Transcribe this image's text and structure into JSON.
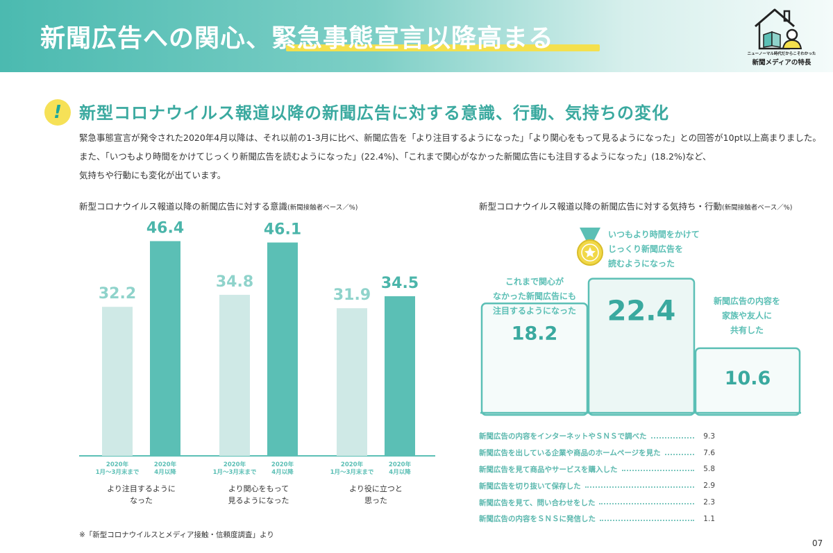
{
  "header": {
    "title": "新聞広告への関心、緊急事態宣言以降高まる",
    "logo_line1": "ニューノーマル時代だからこそわかった",
    "logo_line2": "新聞メディアの特長"
  },
  "section": {
    "alert_icon": "!",
    "heading": "新型コロナウイルス報道以降の新聞広告に対する意識、行動、気持ちの変化",
    "body_lines": [
      "緊急事態宣言が発令された2020年4月以降は、それ以前の1-3月に比べ、新聞広告を「より注目するようになった」「より関心をもって見るようになった」との回答が10pt以上高まりました。",
      "また、「いつもより時間をかけてじっくり新聞広告を読むようになった」(22.4%)、「これまで関心がなかった新聞広告にも注目するようになった」(18.2%)など、",
      "気持ちや行動にも変化が出ています。"
    ]
  },
  "chart_data": [
    {
      "type": "bar",
      "title": "新型コロナウイルス報道以降の新聞広告に対する意識",
      "subtitle": "(新聞接触者ベース／%)",
      "categories": [
        "より注目するように\nなった",
        "より関心をもって\n見るようになった",
        "より役に立つと\n思った"
      ],
      "category_lines": [
        [
          "より注目するように",
          "なった"
        ],
        [
          "より関心をもって",
          "見るようになった"
        ],
        [
          "より役に立つと",
          "思った"
        ]
      ],
      "series": [
        {
          "name": "2020年 1月〜3月末まで",
          "name_lines": [
            "2020年",
            "1月〜3月末まで"
          ],
          "values": [
            32.2,
            34.8,
            31.9
          ],
          "color": "#cfe9e6"
        },
        {
          "name": "2020年 4月以降",
          "name_lines": [
            "2020年",
            "4月以降"
          ],
          "values": [
            46.4,
            46.1,
            34.5
          ],
          "color": "#5bbfb5"
        }
      ],
      "value_labels": [
        [
          "32.2",
          "46.4"
        ],
        [
          "34.8",
          "46.1"
        ],
        [
          "31.9",
          "34.5"
        ]
      ],
      "ylim": [
        0,
        50
      ]
    },
    {
      "type": "bar",
      "title": "新型コロナウイルス報道以降の新聞広告に対する気持ち・行動",
      "subtitle": "(新聞接触者ベース／%)",
      "podium": [
        {
          "label_lines": [
            "これまで関心が",
            "なかった新聞広告にも",
            "注目するようになった"
          ],
          "value": 18.2,
          "value_label": "18.2"
        },
        {
          "label_lines": [
            "いつもより時間をかけて",
            "じっくり新聞広告を",
            "読むようになった"
          ],
          "value": 22.4,
          "value_label": "22.4",
          "icon": "medal-icon"
        },
        {
          "label_lines": [
            "新聞広告の内容を",
            "家族や友人に",
            "共有した"
          ],
          "value": 10.6,
          "value_label": "10.6"
        }
      ],
      "list": [
        {
          "label": "新聞広告の内容をインターネットやＳＮＳで調べた",
          "value": 9.3,
          "value_label": "9.3"
        },
        {
          "label": "新聞広告を出している企業や商品のホームページを見た",
          "value": 7.6,
          "value_label": "7.6"
        },
        {
          "label": "新聞広告を見て商品やサービスを購入した",
          "value": 5.8,
          "value_label": "5.8"
        },
        {
          "label": "新聞広告を切り抜いて保存した",
          "value": 2.9,
          "value_label": "2.9"
        },
        {
          "label": "新聞広告を見て、問い合わせをした",
          "value": 2.3,
          "value_label": "2.3"
        },
        {
          "label": "新聞広告の内容をＳＮＳに発信した",
          "value": 1.1,
          "value_label": "1.1"
        }
      ]
    }
  ],
  "footer": {
    "note": "※「新型コロナウイルスとメディア接触・信頼度調査」より",
    "page_number": "07"
  },
  "colors": {
    "accent": "#5bbfb5",
    "accent_light": "#cfe9e6",
    "highlight": "#f4e04d",
    "text_teal": "#3aa99f"
  }
}
